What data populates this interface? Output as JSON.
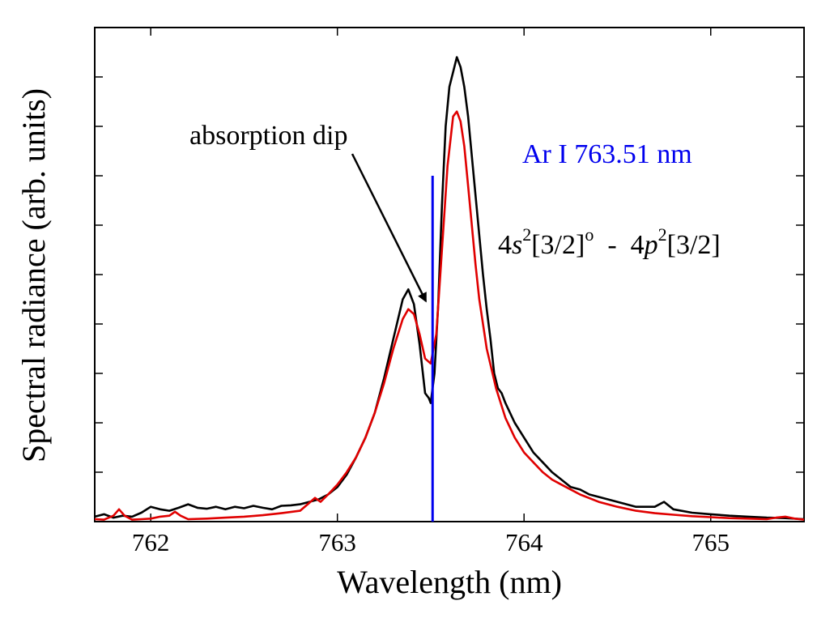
{
  "chart_data": {
    "type": "line",
    "xlabel": "Wavelength (nm)",
    "ylabel": "Spectral radiance (arb. units)",
    "xlim": [
      761.7,
      765.5
    ],
    "ylim": [
      0,
      1.0
    ],
    "x_ticks": [
      762,
      763,
      764,
      765
    ],
    "x_tick_labels": [
      "762",
      "763",
      "764",
      "765"
    ],
    "y_ticks": [
      0.1,
      0.2,
      0.3,
      0.4,
      0.5,
      0.6,
      0.7,
      0.8,
      0.9
    ],
    "grid": false,
    "legend": "none",
    "series": [
      {
        "color": "#000000",
        "style": "measured",
        "x": [
          761.7,
          761.75,
          761.8,
          761.85,
          761.9,
          761.95,
          762.0,
          762.05,
          762.1,
          762.15,
          762.2,
          762.25,
          762.3,
          762.35,
          762.4,
          762.45,
          762.5,
          762.55,
          762.6,
          762.65,
          762.7,
          762.75,
          762.8,
          762.85,
          762.9,
          762.95,
          763.0,
          763.05,
          763.1,
          763.15,
          763.2,
          763.25,
          763.3,
          763.35,
          763.38,
          763.41,
          763.44,
          763.47,
          763.49,
          763.5,
          763.52,
          763.54,
          763.56,
          763.58,
          763.6,
          763.62,
          763.64,
          763.66,
          763.68,
          763.7,
          763.72,
          763.74,
          763.76,
          763.78,
          763.8,
          763.82,
          763.84,
          763.86,
          763.88,
          763.9,
          763.95,
          764.0,
          764.05,
          764.1,
          764.15,
          764.2,
          764.25,
          764.3,
          764.35,
          764.4,
          764.5,
          764.6,
          764.7,
          764.75,
          764.8,
          764.9,
          765.0,
          765.1,
          765.2,
          765.3,
          765.4,
          765.5
        ],
        "y": [
          0.01,
          0.015,
          0.008,
          0.012,
          0.01,
          0.018,
          0.03,
          0.025,
          0.022,
          0.028,
          0.035,
          0.028,
          0.026,
          0.03,
          0.025,
          0.03,
          0.027,
          0.032,
          0.028,
          0.025,
          0.032,
          0.033,
          0.035,
          0.04,
          0.045,
          0.055,
          0.07,
          0.095,
          0.13,
          0.17,
          0.22,
          0.29,
          0.37,
          0.45,
          0.47,
          0.44,
          0.36,
          0.26,
          0.25,
          0.24,
          0.3,
          0.44,
          0.64,
          0.8,
          0.88,
          0.91,
          0.94,
          0.92,
          0.88,
          0.82,
          0.74,
          0.66,
          0.58,
          0.5,
          0.43,
          0.37,
          0.3,
          0.27,
          0.26,
          0.24,
          0.2,
          0.17,
          0.14,
          0.12,
          0.1,
          0.085,
          0.07,
          0.065,
          0.055,
          0.05,
          0.04,
          0.03,
          0.03,
          0.04,
          0.025,
          0.018,
          0.015,
          0.012,
          0.01,
          0.008,
          0.007,
          0.005
        ]
      },
      {
        "color": "#e00000",
        "style": "fit",
        "x": [
          761.7,
          761.75,
          761.8,
          761.83,
          761.86,
          761.9,
          761.95,
          762.0,
          762.05,
          762.1,
          762.13,
          762.16,
          762.2,
          762.3,
          762.4,
          762.5,
          762.6,
          762.7,
          762.8,
          762.85,
          762.88,
          762.91,
          762.95,
          763.0,
          763.05,
          763.1,
          763.15,
          763.2,
          763.25,
          763.3,
          763.35,
          763.38,
          763.41,
          763.44,
          763.47,
          763.5,
          763.53,
          763.56,
          763.59,
          763.62,
          763.64,
          763.66,
          763.68,
          763.7,
          763.72,
          763.74,
          763.76,
          763.8,
          763.85,
          763.9,
          763.95,
          764.0,
          764.05,
          764.1,
          764.15,
          764.2,
          764.3,
          764.4,
          764.5,
          764.6,
          764.7,
          764.8,
          764.9,
          765.0,
          765.1,
          765.2,
          765.3,
          765.35,
          765.4,
          765.45,
          765.5
        ],
        "y": [
          0.005,
          0.004,
          0.012,
          0.025,
          0.012,
          0.004,
          0.005,
          0.006,
          0.01,
          0.012,
          0.02,
          0.012,
          0.005,
          0.006,
          0.008,
          0.01,
          0.013,
          0.017,
          0.022,
          0.038,
          0.048,
          0.04,
          0.055,
          0.075,
          0.1,
          0.13,
          0.17,
          0.22,
          0.28,
          0.35,
          0.41,
          0.43,
          0.42,
          0.38,
          0.33,
          0.32,
          0.38,
          0.55,
          0.72,
          0.82,
          0.83,
          0.81,
          0.76,
          0.68,
          0.6,
          0.52,
          0.45,
          0.35,
          0.27,
          0.21,
          0.17,
          0.14,
          0.12,
          0.1,
          0.085,
          0.075,
          0.055,
          0.04,
          0.03,
          0.022,
          0.017,
          0.014,
          0.011,
          0.009,
          0.007,
          0.006,
          0.005,
          0.008,
          0.01,
          0.006,
          0.004
        ]
      }
    ],
    "marker_line": {
      "x": 763.51,
      "y_top": 0.7,
      "color": "#0000ee"
    },
    "annotations": {
      "dip_label": "absorption dip",
      "line_label": "Ar I 763.51 nm",
      "transition": {
        "lower_coef": "4",
        "lower_orbital": "s",
        "lower_sup": "2",
        "lower_term": "[3/2]",
        "lower_parity": "o",
        "separator": "  -  ",
        "upper_coef": "4",
        "upper_orbital": "p",
        "upper_sup": "2",
        "upper_term": "[3/2]"
      },
      "dip_point": {
        "x": 763.5,
        "y": 0.43
      }
    }
  }
}
